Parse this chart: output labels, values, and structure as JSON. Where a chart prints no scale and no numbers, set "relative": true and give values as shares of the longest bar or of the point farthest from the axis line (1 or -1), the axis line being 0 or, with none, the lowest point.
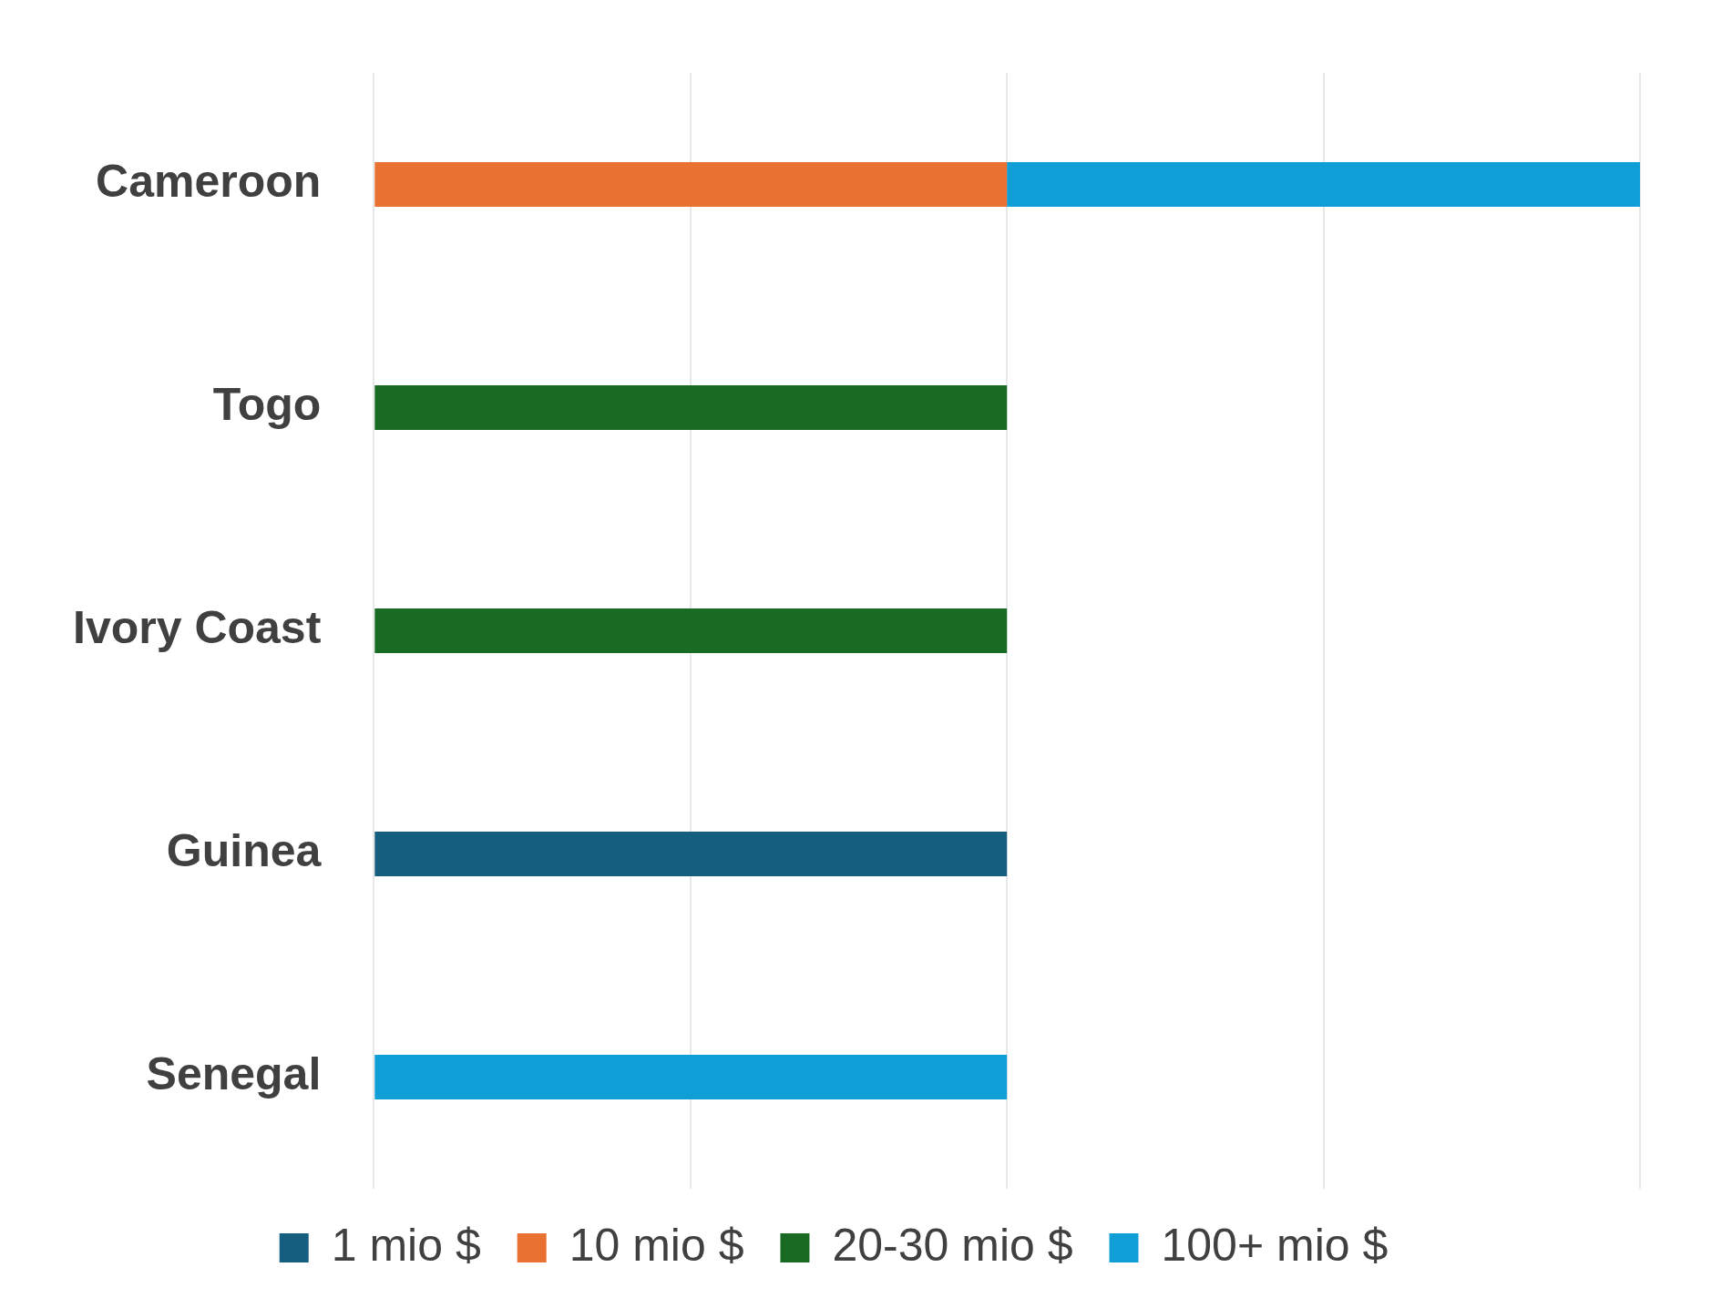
{
  "chart_data": {
    "type": "bar",
    "orientation": "horizontal",
    "stacked": true,
    "relative": true,
    "grid": "x",
    "legend": "bottom",
    "categories": [
      "Cameroon",
      "Togo",
      "Ivory Coast",
      "Guinea",
      "Senegal"
    ],
    "series": [
      {
        "name": "1 mio $",
        "color": "#165e80",
        "values": [
          null,
          null,
          null,
          0.5,
          null
        ]
      },
      {
        "name": "10 mio $",
        "color": "#e97132",
        "values": [
          0.5,
          null,
          null,
          null,
          null
        ]
      },
      {
        "name": "20-30 mio $",
        "color": "#196b24",
        "values": [
          null,
          0.5,
          0.5,
          null,
          null
        ]
      },
      {
        "name": "100+ mio $",
        "color": "#0f9ed5",
        "values": [
          0.5,
          null,
          null,
          null,
          0.5
        ]
      }
    ]
  }
}
